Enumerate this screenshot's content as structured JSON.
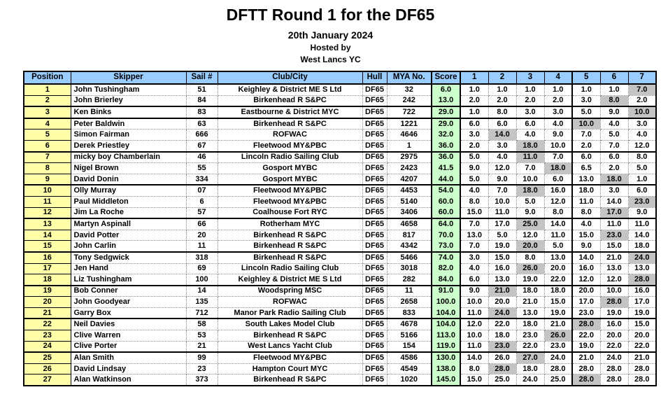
{
  "header": {
    "title": "DFTT Round 1 for the DF65",
    "date": "20th January 2024",
    "hosted_by": "Hosted by",
    "host_club": "West Lancs YC"
  },
  "colors": {
    "header_bg": "#99CCFF",
    "position_bg": "#FFFFAA",
    "score_bg": "#CCFFCC",
    "discard_bg": "#C4C4C4",
    "border": "#000000"
  },
  "table": {
    "columns": [
      "Position",
      "Skipper",
      "Sail #",
      "Club/City",
      "Hull",
      "MYA No.",
      "Score",
      "1",
      "2",
      "3",
      "4",
      "5",
      "6",
      "7"
    ],
    "rows": [
      {
        "position": "1",
        "skipper": "John Tushingham",
        "sail": "51",
        "club": "Keighley & District ME S Ltd",
        "hull": "DF65",
        "mya": "32",
        "score": "6.0",
        "races": [
          "1.0",
          "1.0",
          "1.0",
          "1.0",
          "1.0",
          "1.0",
          "7.0"
        ],
        "discard": 6,
        "group_end": false
      },
      {
        "position": "2",
        "skipper": "John Brierley",
        "sail": "84",
        "club": "Birkenhead R S&PC",
        "hull": "DF65",
        "mya": "242",
        "score": "13.0",
        "races": [
          "2.0",
          "2.0",
          "2.0",
          "2.0",
          "3.0",
          "8.0",
          "2.0"
        ],
        "discard": 5,
        "group_end": true
      },
      {
        "position": "3",
        "skipper": "Ken Binks",
        "sail": "83",
        "club": "Eastbourne & District MYC",
        "hull": "DF65",
        "mya": "722",
        "score": "29.0",
        "races": [
          "1.0",
          "8.0",
          "3.0",
          "3.0",
          "5.0",
          "9.0",
          "10.0"
        ],
        "discard": 6,
        "group_end": true
      },
      {
        "position": "4",
        "skipper": "Peter Baldwin",
        "sail": "63",
        "club": "Birkenhead R S&PC",
        "hull": "DF65",
        "mya": "1221",
        "score": "29.0",
        "races": [
          "6.0",
          "6.0",
          "6.0",
          "4.0",
          "10.0",
          "4.0",
          "3.0"
        ],
        "discard": 4,
        "group_end": false
      },
      {
        "position": "5",
        "skipper": "Simon Fairman",
        "sail": "666",
        "club": "ROFWAC",
        "hull": "DF65",
        "mya": "4646",
        "score": "32.0",
        "races": [
          "3.0",
          "14.0",
          "4.0",
          "9.0",
          "7.0",
          "5.0",
          "4.0"
        ],
        "discard": 1,
        "group_end": false
      },
      {
        "position": "6",
        "skipper": "Derek Priestley",
        "sail": "67",
        "club": "Fleetwood MY&PBC",
        "hull": "DF65",
        "mya": "1",
        "score": "36.0",
        "races": [
          "2.0",
          "3.0",
          "18.0",
          "10.0",
          "2.0",
          "7.0",
          "12.0"
        ],
        "discard": 2,
        "group_end": true
      },
      {
        "position": "7",
        "skipper": "micky boy Chamberlain",
        "sail": "46",
        "club": "Lincoln Radio Sailing Club",
        "hull": "DF65",
        "mya": "2975",
        "score": "36.0",
        "races": [
          "5.0",
          "4.0",
          "11.0",
          "7.0",
          "6.0",
          "6.0",
          "8.0"
        ],
        "discard": 2,
        "group_end": false
      },
      {
        "position": "8",
        "skipper": "Nigel Brown",
        "sail": "55",
        "club": "Gosport MYBC",
        "hull": "DF65",
        "mya": "2423",
        "score": "41.5",
        "races": [
          "9.0",
          "12.0",
          "7.0",
          "18.0",
          "6.5",
          "2.0",
          "5.0"
        ],
        "discard": 3,
        "group_end": false
      },
      {
        "position": "9",
        "skipper": "David Donin",
        "sail": "334",
        "club": "Gosport MYBC",
        "hull": "DF65",
        "mya": "4207",
        "score": "44.0",
        "races": [
          "5.0",
          "9.0",
          "10.0",
          "6.0",
          "13.0",
          "18.0",
          "1.0"
        ],
        "discard": 5,
        "group_end": true
      },
      {
        "position": "10",
        "skipper": "Olly Murray",
        "sail": "07",
        "club": "Fleetwood MY&PBC",
        "hull": "DF65",
        "mya": "4453",
        "score": "54.0",
        "races": [
          "4.0",
          "7.0",
          "18.0",
          "16.0",
          "18.0",
          "3.0",
          "6.0"
        ],
        "discard": 2,
        "group_end": false
      },
      {
        "position": "11",
        "skipper": "Paul Middleton",
        "sail": "6",
        "club": "Fleetwood MY&PBC",
        "hull": "DF65",
        "mya": "5140",
        "score": "60.0",
        "races": [
          "8.0",
          "10.0",
          "5.0",
          "12.0",
          "11.0",
          "14.0",
          "23.0"
        ],
        "discard": 6,
        "group_end": false
      },
      {
        "position": "12",
        "skipper": "Jim La Roche",
        "sail": "57",
        "club": "Coalhouse Fort RYC",
        "hull": "DF65",
        "mya": "3406",
        "score": "60.0",
        "races": [
          "15.0",
          "11.0",
          "9.0",
          "8.0",
          "8.0",
          "17.0",
          "9.0"
        ],
        "discard": 5,
        "group_end": true
      },
      {
        "position": "13",
        "skipper": "Martyn Aspinall",
        "sail": "66",
        "club": "Rotherham MYC",
        "hull": "DF65",
        "mya": "4658",
        "score": "64.0",
        "races": [
          "7.0",
          "17.0",
          "25.0",
          "14.0",
          "4.0",
          "11.0",
          "11.0"
        ],
        "discard": 2,
        "group_end": false
      },
      {
        "position": "14",
        "skipper": "David Potter",
        "sail": "20",
        "club": "Birkenhead R S&PC",
        "hull": "DF65",
        "mya": "817",
        "score": "70.0",
        "races": [
          "13.0",
          "5.0",
          "12.0",
          "11.0",
          "15.0",
          "23.0",
          "14.0"
        ],
        "discard": 5,
        "group_end": false
      },
      {
        "position": "15",
        "skipper": "John Carlin",
        "sail": "11",
        "club": "Birkenhead R S&PC",
        "hull": "DF65",
        "mya": "4342",
        "score": "73.0",
        "races": [
          "7.0",
          "19.0",
          "20.0",
          "5.0",
          "9.0",
          "15.0",
          "18.0"
        ],
        "discard": 2,
        "group_end": true
      },
      {
        "position": "16",
        "skipper": "Tony Sedgwick",
        "sail": "318",
        "club": "Birkenhead R S&PC",
        "hull": "DF65",
        "mya": "5466",
        "score": "74.0",
        "races": [
          "3.0",
          "15.0",
          "8.0",
          "13.0",
          "14.0",
          "21.0",
          "24.0"
        ],
        "discard": 6,
        "group_end": false
      },
      {
        "position": "17",
        "skipper": "Jen Hand",
        "sail": "69",
        "club": "Lincoln Radio Sailing Club",
        "hull": "DF65",
        "mya": "3018",
        "score": "82.0",
        "races": [
          "4.0",
          "16.0",
          "26.0",
          "20.0",
          "16.0",
          "13.0",
          "13.0"
        ],
        "discard": 2,
        "group_end": false
      },
      {
        "position": "18",
        "skipper": "Liz Tushingham",
        "sail": "100",
        "club": "Keighley & District ME S Ltd",
        "hull": "DF65",
        "mya": "282",
        "score": "84.0",
        "races": [
          "6.0",
          "13.0",
          "19.0",
          "22.0",
          "12.0",
          "12.0",
          "28.0"
        ],
        "discard": 6,
        "group_end": true
      },
      {
        "position": "19",
        "skipper": "Bob Conner",
        "sail": "14",
        "club": "Woodspring MSC",
        "hull": "DF65",
        "mya": "11",
        "score": "91.0",
        "races": [
          "9.0",
          "21.0",
          "18.0",
          "18.0",
          "20.0",
          "10.0",
          "16.0"
        ],
        "discard": 1,
        "group_end": false
      },
      {
        "position": "20",
        "skipper": "John Goodyear",
        "sail": "135",
        "club": "ROFWAC",
        "hull": "DF65",
        "mya": "2658",
        "score": "100.0",
        "races": [
          "10.0",
          "20.0",
          "21.0",
          "15.0",
          "17.0",
          "28.0",
          "17.0"
        ],
        "discard": 5,
        "group_end": false
      },
      {
        "position": "21",
        "skipper": "Garry Box",
        "sail": "712",
        "club": "Manor Park Radio Sailing Club",
        "hull": "DF65",
        "mya": "833",
        "score": "104.0",
        "races": [
          "11.0",
          "24.0",
          "13.0",
          "19.0",
          "23.0",
          "19.0",
          "19.0"
        ],
        "discard": 1,
        "group_end": true
      },
      {
        "position": "22",
        "skipper": "Neil Davies",
        "sail": "58",
        "club": "South Lakes Model Club",
        "hull": "DF65",
        "mya": "4678",
        "score": "104.0",
        "races": [
          "12.0",
          "22.0",
          "18.0",
          "21.0",
          "28.0",
          "16.0",
          "15.0"
        ],
        "discard": 4,
        "group_end": false
      },
      {
        "position": "23",
        "skipper": "Clive Warren",
        "sail": "53",
        "club": "Birkenhead R S&PC",
        "hull": "DF65",
        "mya": "5166",
        "score": "113.0",
        "races": [
          "10.0",
          "18.0",
          "23.0",
          "26.0",
          "22.0",
          "20.0",
          "20.0"
        ],
        "discard": 3,
        "group_end": false
      },
      {
        "position": "24",
        "skipper": "Clive Porter",
        "sail": "21",
        "club": "West Lancs Yacht Club",
        "hull": "DF65",
        "mya": "154",
        "score": "119.0",
        "races": [
          "11.0",
          "23.0",
          "22.0",
          "23.0",
          "19.0",
          "22.0",
          "22.0"
        ],
        "discard": 1,
        "group_end": true
      },
      {
        "position": "25",
        "skipper": "Alan Smith",
        "sail": "99",
        "club": "Fleetwood MY&PBC",
        "hull": "DF65",
        "mya": "4586",
        "score": "130.0",
        "races": [
          "14.0",
          "26.0",
          "27.0",
          "24.0",
          "21.0",
          "24.0",
          "21.0"
        ],
        "discard": 2,
        "group_end": false
      },
      {
        "position": "26",
        "skipper": "David Lindsay",
        "sail": "23",
        "club": "Hampton Court MYC",
        "hull": "DF65",
        "mya": "4549",
        "score": "138.0",
        "races": [
          "8.0",
          "28.0",
          "18.0",
          "28.0",
          "28.0",
          "28.0",
          "28.0"
        ],
        "discard": 1,
        "group_end": false
      },
      {
        "position": "27",
        "skipper": "Alan Watkinson",
        "sail": "373",
        "club": "Birkenhead R S&PC",
        "hull": "DF65",
        "mya": "1020",
        "score": "145.0",
        "races": [
          "15.0",
          "25.0",
          "24.0",
          "25.0",
          "28.0",
          "28.0",
          "28.0"
        ],
        "discard": 4,
        "group_end": true
      }
    ]
  }
}
